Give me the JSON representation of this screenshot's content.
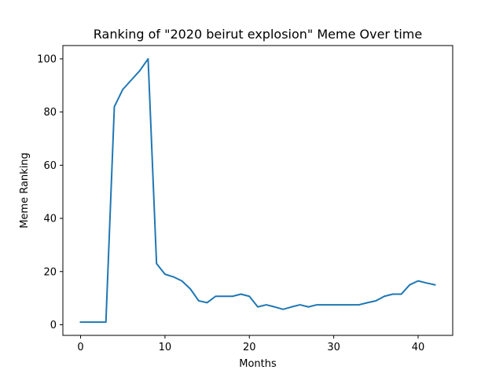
{
  "chart_data": {
    "type": "line",
    "title": "Ranking of \"2020 beirut explosion\" Meme Over time",
    "xlabel": "Months",
    "ylabel": "Meme Ranking",
    "xlim": [
      -2.1,
      44.1
    ],
    "ylim": [
      -4,
      105
    ],
    "xticks": [
      0,
      10,
      20,
      30,
      40
    ],
    "yticks": [
      0,
      20,
      40,
      60,
      80,
      100
    ],
    "grid": false,
    "line_color": "#1f77b4",
    "series": [
      {
        "x": [
          0,
          1,
          2,
          3,
          4,
          5,
          6,
          7,
          8,
          9,
          10,
          11,
          12,
          13,
          14,
          15,
          16,
          17,
          18,
          19,
          20,
          21,
          22,
          23,
          24,
          25,
          26,
          27,
          28,
          29,
          30,
          31,
          32,
          33,
          34,
          35,
          36,
          37,
          38,
          39,
          40,
          41,
          42
        ],
        "values": [
          1,
          1,
          1,
          1,
          82,
          88.5,
          92,
          95.5,
          100,
          23,
          19,
          18,
          16.5,
          13.5,
          9,
          8.3,
          10.7,
          10.7,
          10.7,
          11.5,
          10.7,
          6.7,
          7.5,
          6.7,
          5.8,
          6.7,
          7.5,
          6.7,
          7.5,
          7.5,
          7.5,
          7.5,
          7.5,
          7.5,
          8.3,
          9,
          10.7,
          11.5,
          11.5,
          15,
          16.5,
          15.7,
          15
        ]
      }
    ]
  }
}
